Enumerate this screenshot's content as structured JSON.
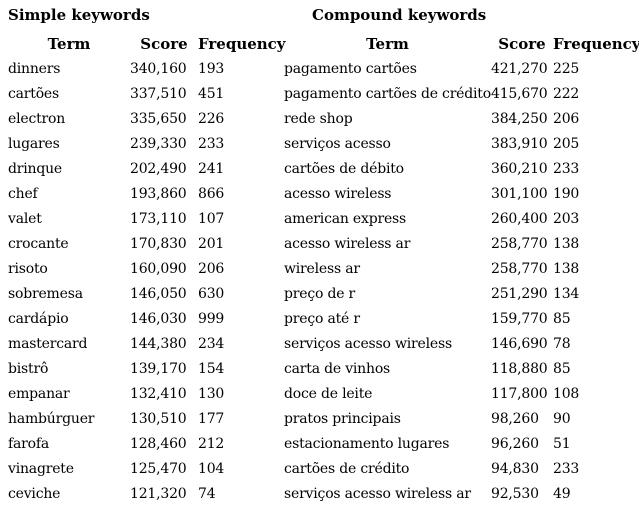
{
  "colors": {
    "background": "#ffffff",
    "text": "#000000"
  },
  "tables": [
    {
      "title": "Simple keywords",
      "columns": {
        "term": "Term",
        "score": "Score",
        "frequency": "Frequency"
      },
      "rows": [
        {
          "term": "dinners",
          "score": "340,160",
          "frequency": "193"
        },
        {
          "term": "cartões",
          "score": "337,510",
          "frequency": "451"
        },
        {
          "term": "electron",
          "score": "335,650",
          "frequency": "226"
        },
        {
          "term": "lugares",
          "score": "239,330",
          "frequency": "233"
        },
        {
          "term": "drinque",
          "score": "202,490",
          "frequency": "241"
        },
        {
          "term": "chef",
          "score": "193,860",
          "frequency": "866"
        },
        {
          "term": "valet",
          "score": "173,110",
          "frequency": "107"
        },
        {
          "term": "crocante",
          "score": "170,830",
          "frequency": "201"
        },
        {
          "term": "risoto",
          "score": "160,090",
          "frequency": "206"
        },
        {
          "term": "sobremesa",
          "score": "146,050",
          "frequency": "630"
        },
        {
          "term": "cardápio",
          "score": "146,030",
          "frequency": "999"
        },
        {
          "term": "mastercard",
          "score": "144,380",
          "frequency": "234"
        },
        {
          "term": "bistrô",
          "score": "139,170",
          "frequency": "154"
        },
        {
          "term": "empanar",
          "score": "132,410",
          "frequency": "130"
        },
        {
          "term": "hambúrguer",
          "score": "130,510",
          "frequency": "177"
        },
        {
          "term": "farofa",
          "score": "128,460",
          "frequency": "212"
        },
        {
          "term": "vinagrete",
          "score": "125,470",
          "frequency": "104"
        },
        {
          "term": "ceviche",
          "score": "121,320",
          "frequency": "74"
        }
      ]
    },
    {
      "title": "Compound keywords",
      "columns": {
        "term": "Term",
        "score": "Score",
        "frequency": "Frequency"
      },
      "rows": [
        {
          "term": "pagamento cartões",
          "score": "421,270",
          "frequency": "225"
        },
        {
          "term": "pagamento cartões de crédito",
          "score": "415,670",
          "frequency": "222"
        },
        {
          "term": "rede shop",
          "score": "384,250",
          "frequency": "206"
        },
        {
          "term": "serviços acesso",
          "score": "383,910",
          "frequency": "205"
        },
        {
          "term": "cartões de débito",
          "score": "360,210",
          "frequency": "233"
        },
        {
          "term": "acesso wireless",
          "score": "301,100",
          "frequency": "190"
        },
        {
          "term": "american express",
          "score": "260,400",
          "frequency": "203"
        },
        {
          "term": "acesso wireless ar",
          "score": "258,770",
          "frequency": "138"
        },
        {
          "term": "wireless ar",
          "score": "258,770",
          "frequency": "138"
        },
        {
          "term": "preço de r",
          "score": "251,290",
          "frequency": "134"
        },
        {
          "term": "preço até r",
          "score": "159,770",
          "frequency": "85"
        },
        {
          "term": "serviços acesso wireless",
          "score": "146,690",
          "frequency": "78"
        },
        {
          "term": "carta de vinhos",
          "score": "118,880",
          "frequency": "85"
        },
        {
          "term": "doce de leite",
          "score": "117,800",
          "frequency": "108"
        },
        {
          "term": "pratos principais",
          "score": "98,260",
          "frequency": "90"
        },
        {
          "term": "estacionamento lugares",
          "score": "96,260",
          "frequency": "51"
        },
        {
          "term": "cartões de crédito",
          "score": "94,830",
          "frequency": "233"
        },
        {
          "term": "serviços acesso wireless ar",
          "score": "92,530",
          "frequency": "49"
        }
      ]
    }
  ]
}
